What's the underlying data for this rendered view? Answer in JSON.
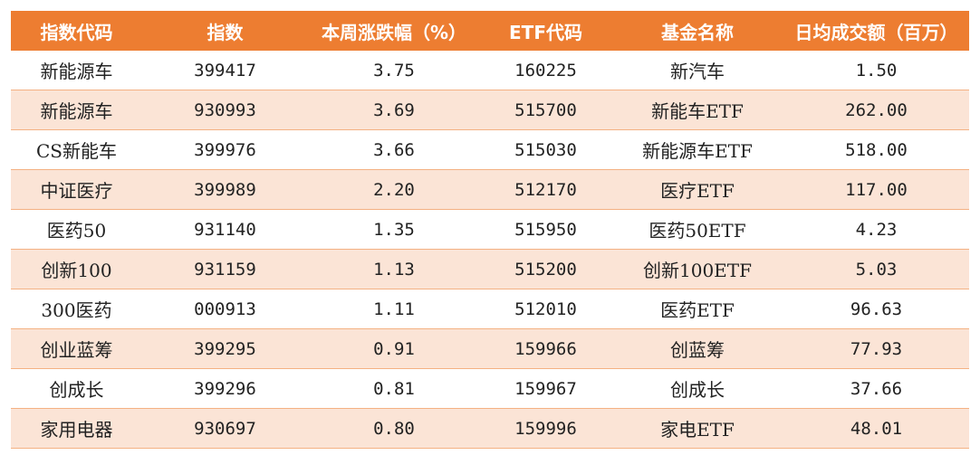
{
  "table": {
    "headers": [
      "指数代码",
      "指数",
      "本周涨跌幅（%）",
      "ETF代码",
      "基金名称",
      "日均成交额（百万）"
    ],
    "rows": [
      [
        "新能源车",
        "399417",
        "3.75",
        "160225",
        "新汽车",
        "1.50"
      ],
      [
        "新能源车",
        "930993",
        "3.69",
        "515700",
        "新能车ETF",
        "262.00"
      ],
      [
        "CS新能车",
        "399976",
        "3.66",
        "515030",
        "新能源车ETF",
        "518.00"
      ],
      [
        "中证医疗",
        "399989",
        "2.20",
        "512170",
        "医疗ETF",
        "117.00"
      ],
      [
        "医药50",
        "931140",
        "1.35",
        "515950",
        "医药50ETF",
        "4.23"
      ],
      [
        "创新100",
        "931159",
        "1.13",
        "515200",
        "创新100ETF",
        "5.03"
      ],
      [
        "300医药",
        "000913",
        "1.11",
        "512010",
        "医药ETF",
        "96.63"
      ],
      [
        "创业蓝筹",
        "399295",
        "0.91",
        "159966",
        "创蓝筹",
        "77.93"
      ],
      [
        "创成长",
        "399296",
        "0.81",
        "159967",
        "创成长",
        "37.66"
      ],
      [
        "家用电器",
        "930697",
        "0.80",
        "159996",
        "家电ETF",
        "48.01"
      ]
    ]
  },
  "colors": {
    "header_bg": "#ed7d31",
    "header_text": "#ffffff",
    "stripe_bg": "#fbe4d6",
    "row_border": "#f4b183"
  }
}
